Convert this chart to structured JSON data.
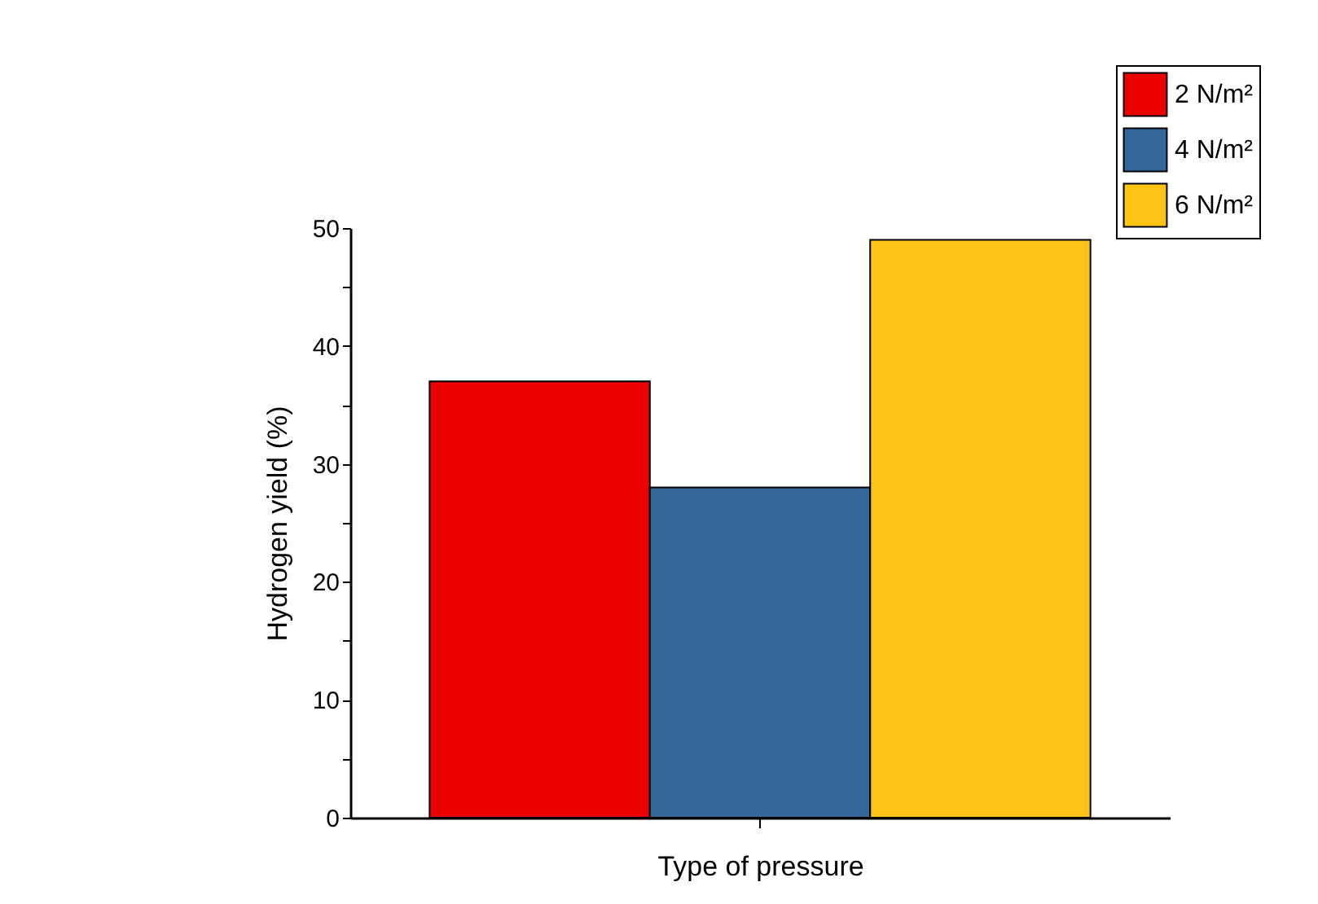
{
  "chart_data": {
    "type": "bar",
    "xlabel": "Type of pressure",
    "ylabel": "Hydrogen yield (%)",
    "categories": [
      null
    ],
    "series": [
      {
        "name": "2 N/m²",
        "color": "#ec0000",
        "values": [
          37
        ]
      },
      {
        "name": "4 N/m²",
        "color": "#336699",
        "values": [
          28
        ]
      },
      {
        "name": "6 N/m²",
        "color": "#fdc315",
        "values": [
          49
        ]
      }
    ],
    "ylim": [
      0,
      50
    ],
    "yticks": [
      0,
      {
        "value": 5,
        "label": null
      },
      10,
      {
        "value": 15,
        "label": null
      },
      20,
      {
        "value": 25,
        "label": null
      },
      30,
      {
        "value": 35,
        "label": null
      },
      40,
      {
        "value": 45,
        "label": null
      },
      50
    ],
    "grid": false,
    "legend": "top right"
  }
}
